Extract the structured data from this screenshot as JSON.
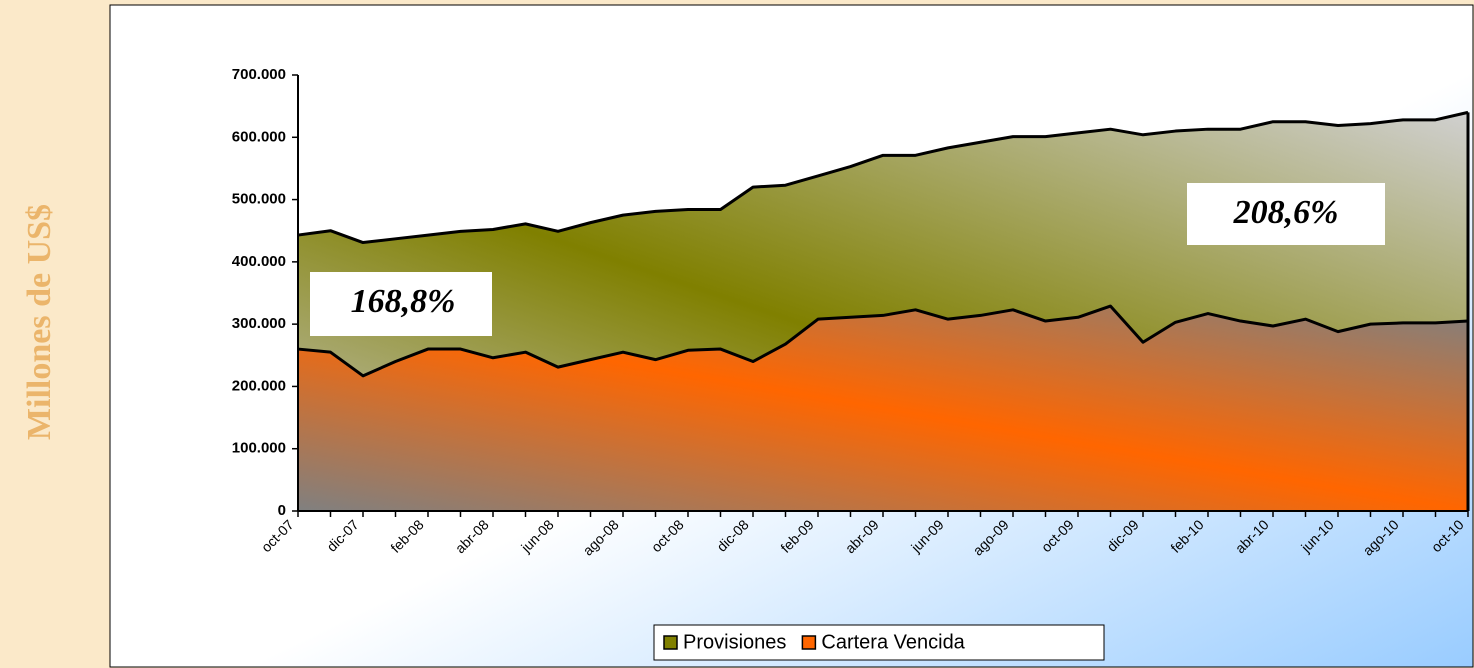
{
  "chart_data": {
    "type": "area",
    "y_label": "Millones de US$",
    "annotations": [
      "168,8%",
      "208,6%"
    ],
    "categories": [
      "oct-07",
      null,
      "dic-07",
      null,
      "feb-08",
      null,
      "abr-08",
      null,
      "jun-08",
      null,
      "ago-08",
      null,
      "oct-08",
      null,
      "dic-08",
      null,
      "feb-09",
      null,
      "abr-09",
      null,
      "jun-09",
      null,
      "ago-09",
      null,
      "oct-09",
      null,
      "dic-09",
      null,
      "feb-10",
      null,
      "abr-10",
      null,
      "jun-10",
      null,
      "ago-10",
      null,
      "oct-10"
    ],
    "series": [
      {
        "name": "Provisiones",
        "color": "#808000",
        "values": [
          443000,
          450000,
          431000,
          437000,
          443000,
          449000,
          452000,
          461000,
          449000,
          463000,
          475000,
          481000,
          484000,
          484000,
          520000,
          523000,
          538000,
          553000,
          571000,
          571000,
          583000,
          592000,
          601000,
          601000,
          607000,
          613000,
          604000,
          610000,
          613000,
          613000,
          625000,
          625000,
          619000,
          622000,
          628000,
          628000,
          640000
        ]
      },
      {
        "name": "Cartera Vencida",
        "color": "#ff6600",
        "values": [
          260000,
          255000,
          217000,
          240000,
          260000,
          260000,
          246000,
          255000,
          231000,
          243000,
          255000,
          243000,
          258000,
          260000,
          240000,
          268000,
          308000,
          311000,
          314000,
          323000,
          308000,
          314000,
          323000,
          305000,
          311000,
          329000,
          271000,
          303000,
          317000,
          305000,
          297000,
          308000,
          288000,
          300000,
          302000,
          302000,
          305000
        ]
      }
    ],
    "ylim": [
      0,
      700000
    ],
    "yticks": [
      0,
      {
        "value": 100000,
        "label": "100.000"
      },
      {
        "value": 200000,
        "label": "200.000"
      },
      {
        "value": 300000,
        "label": "300.000"
      },
      {
        "value": 400000,
        "label": "400.000"
      },
      {
        "value": 500000,
        "label": "500.000"
      },
      {
        "value": 600000,
        "label": "600.000"
      },
      {
        "value": 700000,
        "label": "700.000"
      }
    ],
    "legend": "bottom"
  }
}
